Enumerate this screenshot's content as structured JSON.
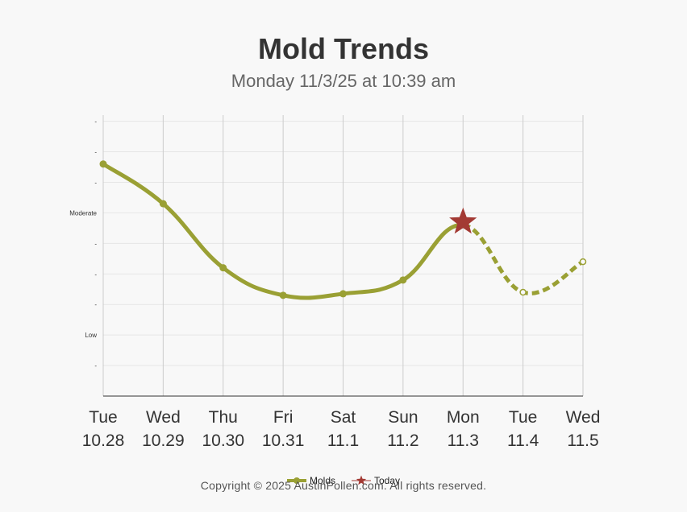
{
  "title": "Mold Trends",
  "subtitle": "Monday 11/3/25 at 10:39 am",
  "copyright": "Copyright © 2025 AustinPollen.com.  All rights reserved.",
  "chart_data": {
    "type": "line",
    "categories_day": [
      "Tue",
      "Wed",
      "Thu",
      "Fri",
      "Sat",
      "Sun",
      "Mon",
      "Tue",
      "Wed"
    ],
    "categories_date": [
      "10.28",
      "10.29",
      "10.30",
      "10.31",
      "11.1",
      "11.2",
      "11.3",
      "11.4",
      "11.5"
    ],
    "y_labels": [
      {
        "value": 1,
        "label": "-"
      },
      {
        "value": 2,
        "label": "Low"
      },
      {
        "value": 3,
        "label": "-"
      },
      {
        "value": 4,
        "label": "-"
      },
      {
        "value": 5,
        "label": "-"
      },
      {
        "value": 6,
        "label": "Moderate"
      },
      {
        "value": 7,
        "label": "-"
      },
      {
        "value": 8,
        "label": "-"
      },
      {
        "value": 9,
        "label": "-"
      }
    ],
    "ylim": [
      0,
      9.2
    ],
    "series": [
      {
        "name": "Molds",
        "color": "#9aa034",
        "values": [
          7.6,
          6.3,
          4.2,
          3.3,
          3.35,
          3.8,
          5.6,
          3.4,
          4.4
        ],
        "forecast_from_index": 6
      }
    ],
    "today": {
      "name": "Today",
      "index": 6,
      "value": 5.7,
      "color": "#a33a34"
    },
    "legend": {
      "position": "bottom",
      "items": [
        "Molds",
        "Today"
      ]
    },
    "grid": true
  }
}
